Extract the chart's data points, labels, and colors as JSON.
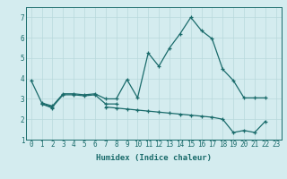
{
  "x": [
    0,
    1,
    2,
    3,
    4,
    5,
    6,
    7,
    8,
    9,
    10,
    11,
    12,
    13,
    14,
    15,
    16,
    17,
    18,
    19,
    20,
    21,
    22,
    23
  ],
  "line1": [
    3.9,
    2.8,
    2.65,
    3.25,
    3.25,
    3.2,
    3.25,
    3.0,
    3.0,
    3.95,
    3.05,
    5.25,
    4.6,
    5.5,
    6.2,
    7.0,
    6.35,
    5.95,
    4.45,
    3.9,
    3.05,
    3.05,
    3.05,
    null
  ],
  "line2": [
    null,
    2.75,
    2.6,
    3.2,
    3.2,
    3.15,
    3.2,
    2.75,
    2.75,
    null,
    null,
    null,
    null,
    null,
    null,
    null,
    null,
    null,
    null,
    null,
    null,
    null,
    null,
    null
  ],
  "line3": [
    null,
    2.75,
    2.55,
    null,
    null,
    null,
    null,
    2.6,
    2.55,
    2.5,
    2.45,
    2.4,
    2.35,
    2.3,
    2.25,
    2.2,
    2.15,
    2.1,
    2.0,
    1.35,
    1.45,
    1.35,
    1.9,
    null
  ],
  "background_color": "#d4ecef",
  "grid_color": "#b8d8dc",
  "line_color": "#1a6b6b",
  "xlabel": "Humidex (Indice chaleur)",
  "ylim": [
    1,
    7.5
  ],
  "xlim": [
    -0.5,
    23.5
  ],
  "yticks": [
    1,
    2,
    3,
    4,
    5,
    6,
    7
  ],
  "xticks": [
    0,
    1,
    2,
    3,
    4,
    5,
    6,
    7,
    8,
    9,
    10,
    11,
    12,
    13,
    14,
    15,
    16,
    17,
    18,
    19,
    20,
    21,
    22,
    23
  ],
  "tick_fontsize": 5.5,
  "xlabel_fontsize": 6.5,
  "linewidth": 0.9,
  "markersize": 3.5,
  "markeredgewidth": 0.9
}
